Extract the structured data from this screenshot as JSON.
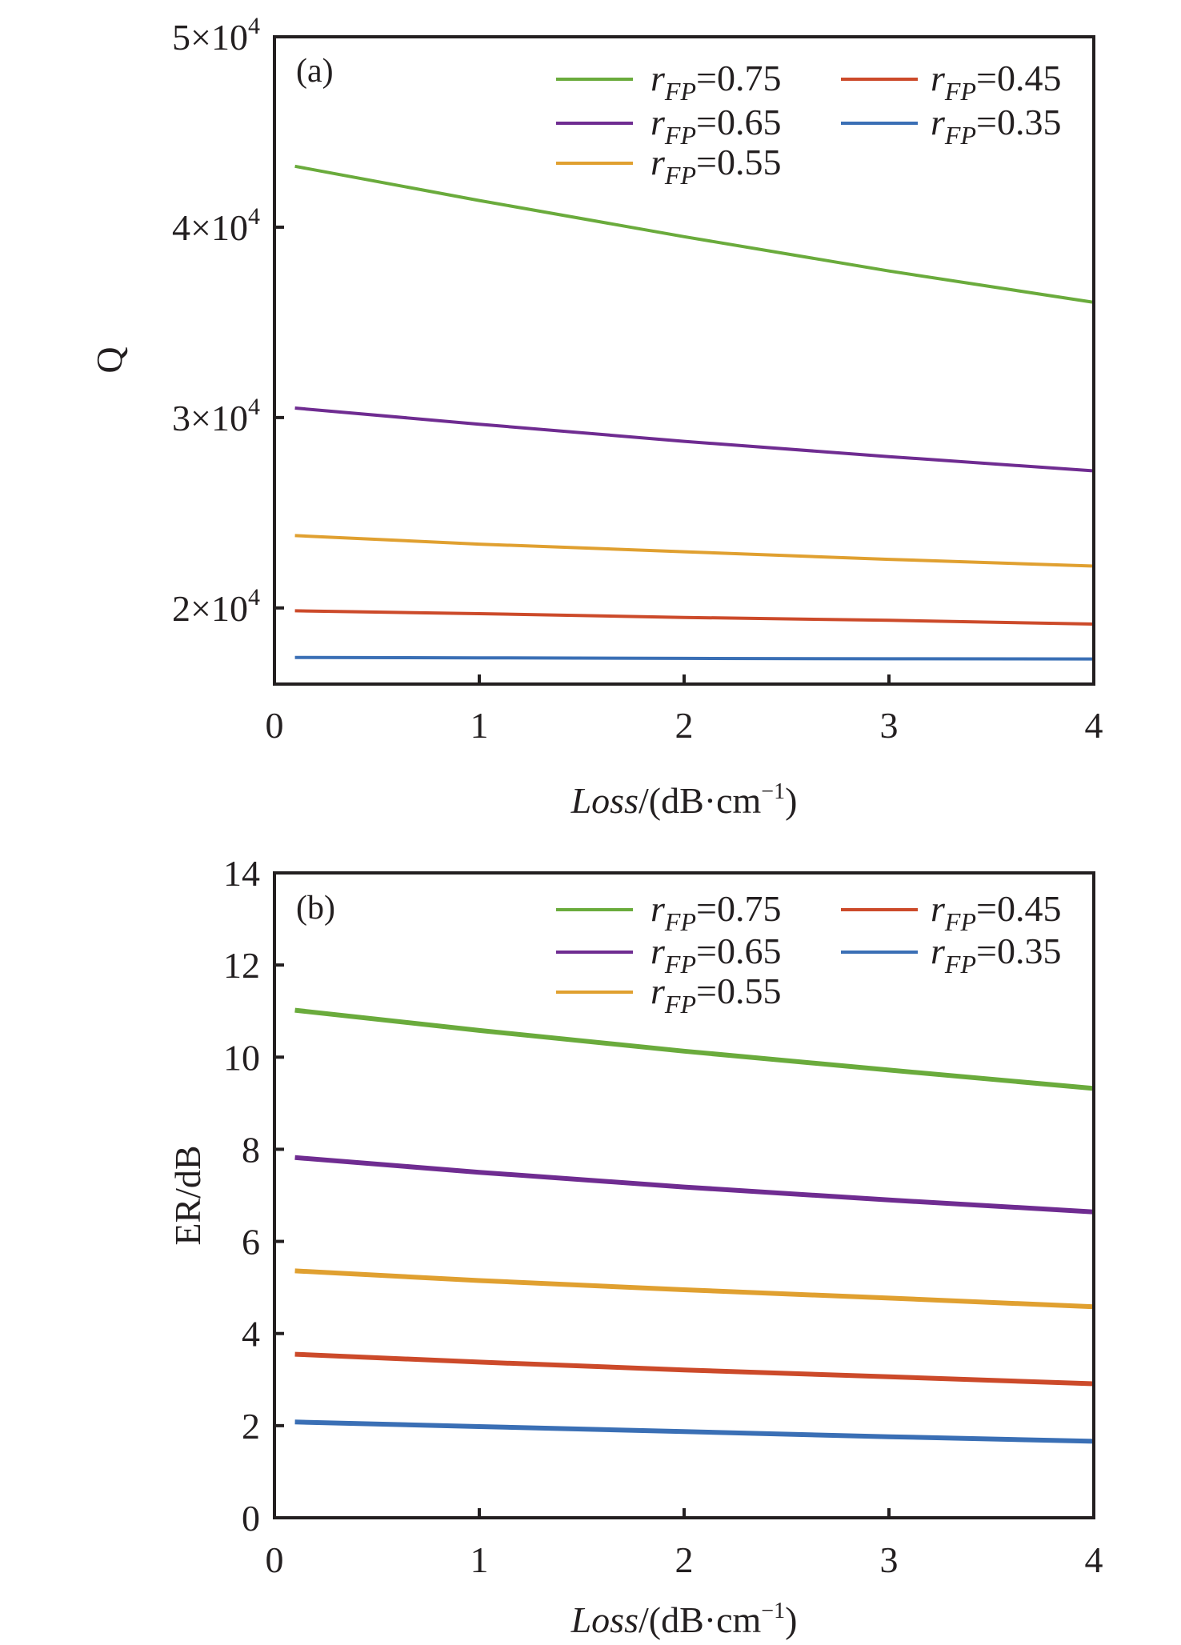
{
  "chart_data": [
    {
      "type": "line",
      "panel_label": "(a)",
      "title": "",
      "xlabel": {
        "italic": "Loss",
        "rest": "/(dB·cm",
        "sup": "−1",
        "close": ")"
      },
      "ylabel": "Q",
      "xlim": [
        0,
        4
      ],
      "ylim": [
        16000,
        50000
      ],
      "x_ticks": [
        {
          "value": 0,
          "label": "0"
        },
        {
          "value": 1,
          "label": "1"
        },
        {
          "value": 2,
          "label": "2"
        },
        {
          "value": 3,
          "label": "3"
        },
        {
          "value": 4,
          "label": "4"
        }
      ],
      "y_ticks": [
        {
          "value": 20000,
          "mantissa": "2×10",
          "exp": "4"
        },
        {
          "value": 30000,
          "mantissa": "3×10",
          "exp": "4"
        },
        {
          "value": 40000,
          "mantissa": "4×10",
          "exp": "4"
        },
        {
          "value": 50000,
          "mantissa": "5×10",
          "exp": "4"
        }
      ],
      "grid": false,
      "legend_placement": "top-right",
      "x": [
        0.1,
        1,
        2,
        3,
        4
      ],
      "series": [
        {
          "name": "rFP=0.75",
          "r_symbol": "r",
          "sub": "FP",
          "value_text": "=0.75",
          "color": "#6aab3c",
          "values": [
            43200,
            41400,
            39500,
            37700,
            36050
          ]
        },
        {
          "name": "rFP=0.65",
          "r_symbol": "r",
          "sub": "FP",
          "value_text": "=0.65",
          "color": "#6f2c91",
          "values": [
            30500,
            29650,
            28750,
            27950,
            27200
          ]
        },
        {
          "name": "rFP=0.55",
          "r_symbol": "r",
          "sub": "FP",
          "value_text": "=0.55",
          "color": "#e0a030",
          "values": [
            23800,
            23350,
            22950,
            22550,
            22200
          ]
        },
        {
          "name": "rFP=0.45",
          "r_symbol": "r",
          "sub": "FP",
          "value_text": "=0.45",
          "color": "#cc4a2a",
          "values": [
            19850,
            19700,
            19500,
            19350,
            19150
          ]
        },
        {
          "name": "rFP=0.35",
          "r_symbol": "r",
          "sub": "FP",
          "value_text": "=0.35",
          "color": "#3a6fb5",
          "values": [
            17400,
            17380,
            17350,
            17330,
            17320
          ]
        }
      ]
    },
    {
      "type": "line",
      "panel_label": "(b)",
      "title": "",
      "xlabel": {
        "italic": "Loss",
        "rest": "/(dB·cm",
        "sup": "−1",
        "close": ")"
      },
      "ylabel": "ER/dB",
      "xlim": [
        0,
        4
      ],
      "ylim": [
        0,
        14
      ],
      "x_ticks": [
        {
          "value": 0,
          "label": "0"
        },
        {
          "value": 1,
          "label": "1"
        },
        {
          "value": 2,
          "label": "2"
        },
        {
          "value": 3,
          "label": "3"
        },
        {
          "value": 4,
          "label": "4"
        }
      ],
      "y_ticks": [
        {
          "value": 0,
          "label": "0"
        },
        {
          "value": 2,
          "label": "2"
        },
        {
          "value": 4,
          "label": "4"
        },
        {
          "value": 6,
          "label": "6"
        },
        {
          "value": 8,
          "label": "8"
        },
        {
          "value": 10,
          "label": "10"
        },
        {
          "value": 12,
          "label": "12"
        },
        {
          "value": 14,
          "label": "14"
        }
      ],
      "grid": false,
      "legend_placement": "top-right",
      "x": [
        0.1,
        1,
        2,
        3,
        4
      ],
      "series": [
        {
          "name": "rFP=0.75",
          "r_symbol": "r",
          "sub": "FP",
          "value_text": "=0.75",
          "color": "#6aab3c",
          "values": [
            11.02,
            10.58,
            10.13,
            9.72,
            9.32
          ]
        },
        {
          "name": "rFP=0.65",
          "r_symbol": "r",
          "sub": "FP",
          "value_text": "=0.65",
          "color": "#6f2c91",
          "values": [
            7.82,
            7.5,
            7.18,
            6.9,
            6.64
          ]
        },
        {
          "name": "rFP=0.55",
          "r_symbol": "r",
          "sub": "FP",
          "value_text": "=0.55",
          "color": "#e0a030",
          "values": [
            5.36,
            5.15,
            4.95,
            4.77,
            4.58
          ]
        },
        {
          "name": "rFP=0.45",
          "r_symbol": "r",
          "sub": "FP",
          "value_text": "=0.45",
          "color": "#cc4a2a",
          "values": [
            3.55,
            3.38,
            3.21,
            3.06,
            2.91
          ]
        },
        {
          "name": "rFP=0.35",
          "r_symbol": "r",
          "sub": "FP",
          "value_text": "=0.35",
          "color": "#3a6fb5",
          "values": [
            2.08,
            1.98,
            1.87,
            1.76,
            1.66
          ]
        }
      ]
    }
  ]
}
